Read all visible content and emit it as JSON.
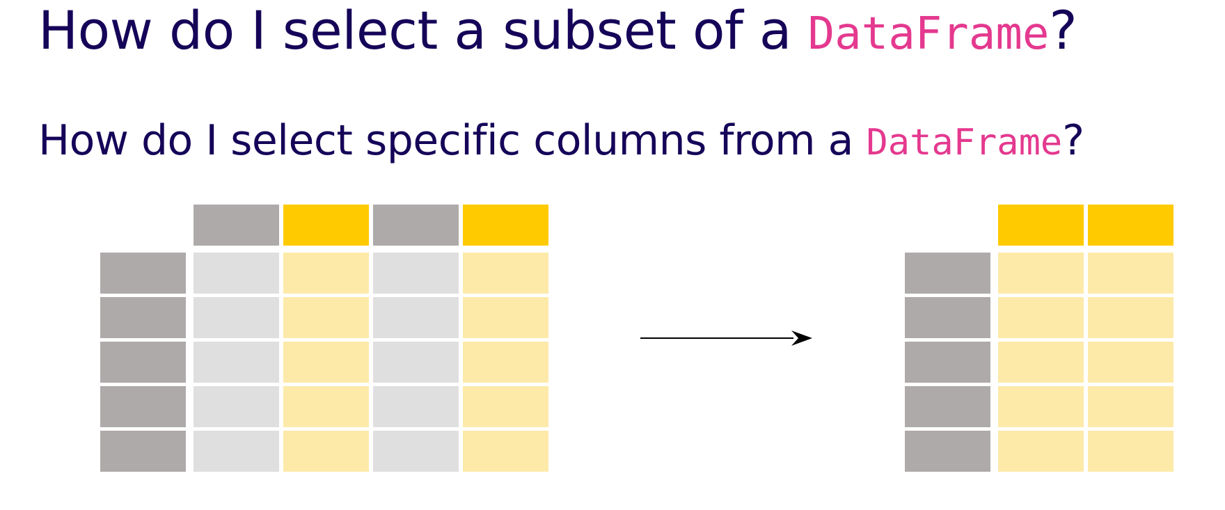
{
  "title": {
    "text_before": "How do I select a subset of a ",
    "code": "DataFrame",
    "text_after": "?"
  },
  "subtitle": {
    "text_before": "How do I select specific columns from a ",
    "code": "DataFrame",
    "text_after": "?"
  },
  "colors": {
    "heading_text": "#150458",
    "code_text": "#e4398f",
    "index_cell": "#aeaaa9",
    "header_unselected": "#aeaaa9",
    "header_selected": "#ffca00",
    "data_unselected": "#e0dfdf",
    "data_selected": "#fdeaa9",
    "arrow": "#000000"
  },
  "source_table": {
    "rows": 5,
    "columns": 4,
    "selected_columns": [
      1,
      3
    ]
  },
  "result_table": {
    "rows": 5,
    "columns": 2
  }
}
